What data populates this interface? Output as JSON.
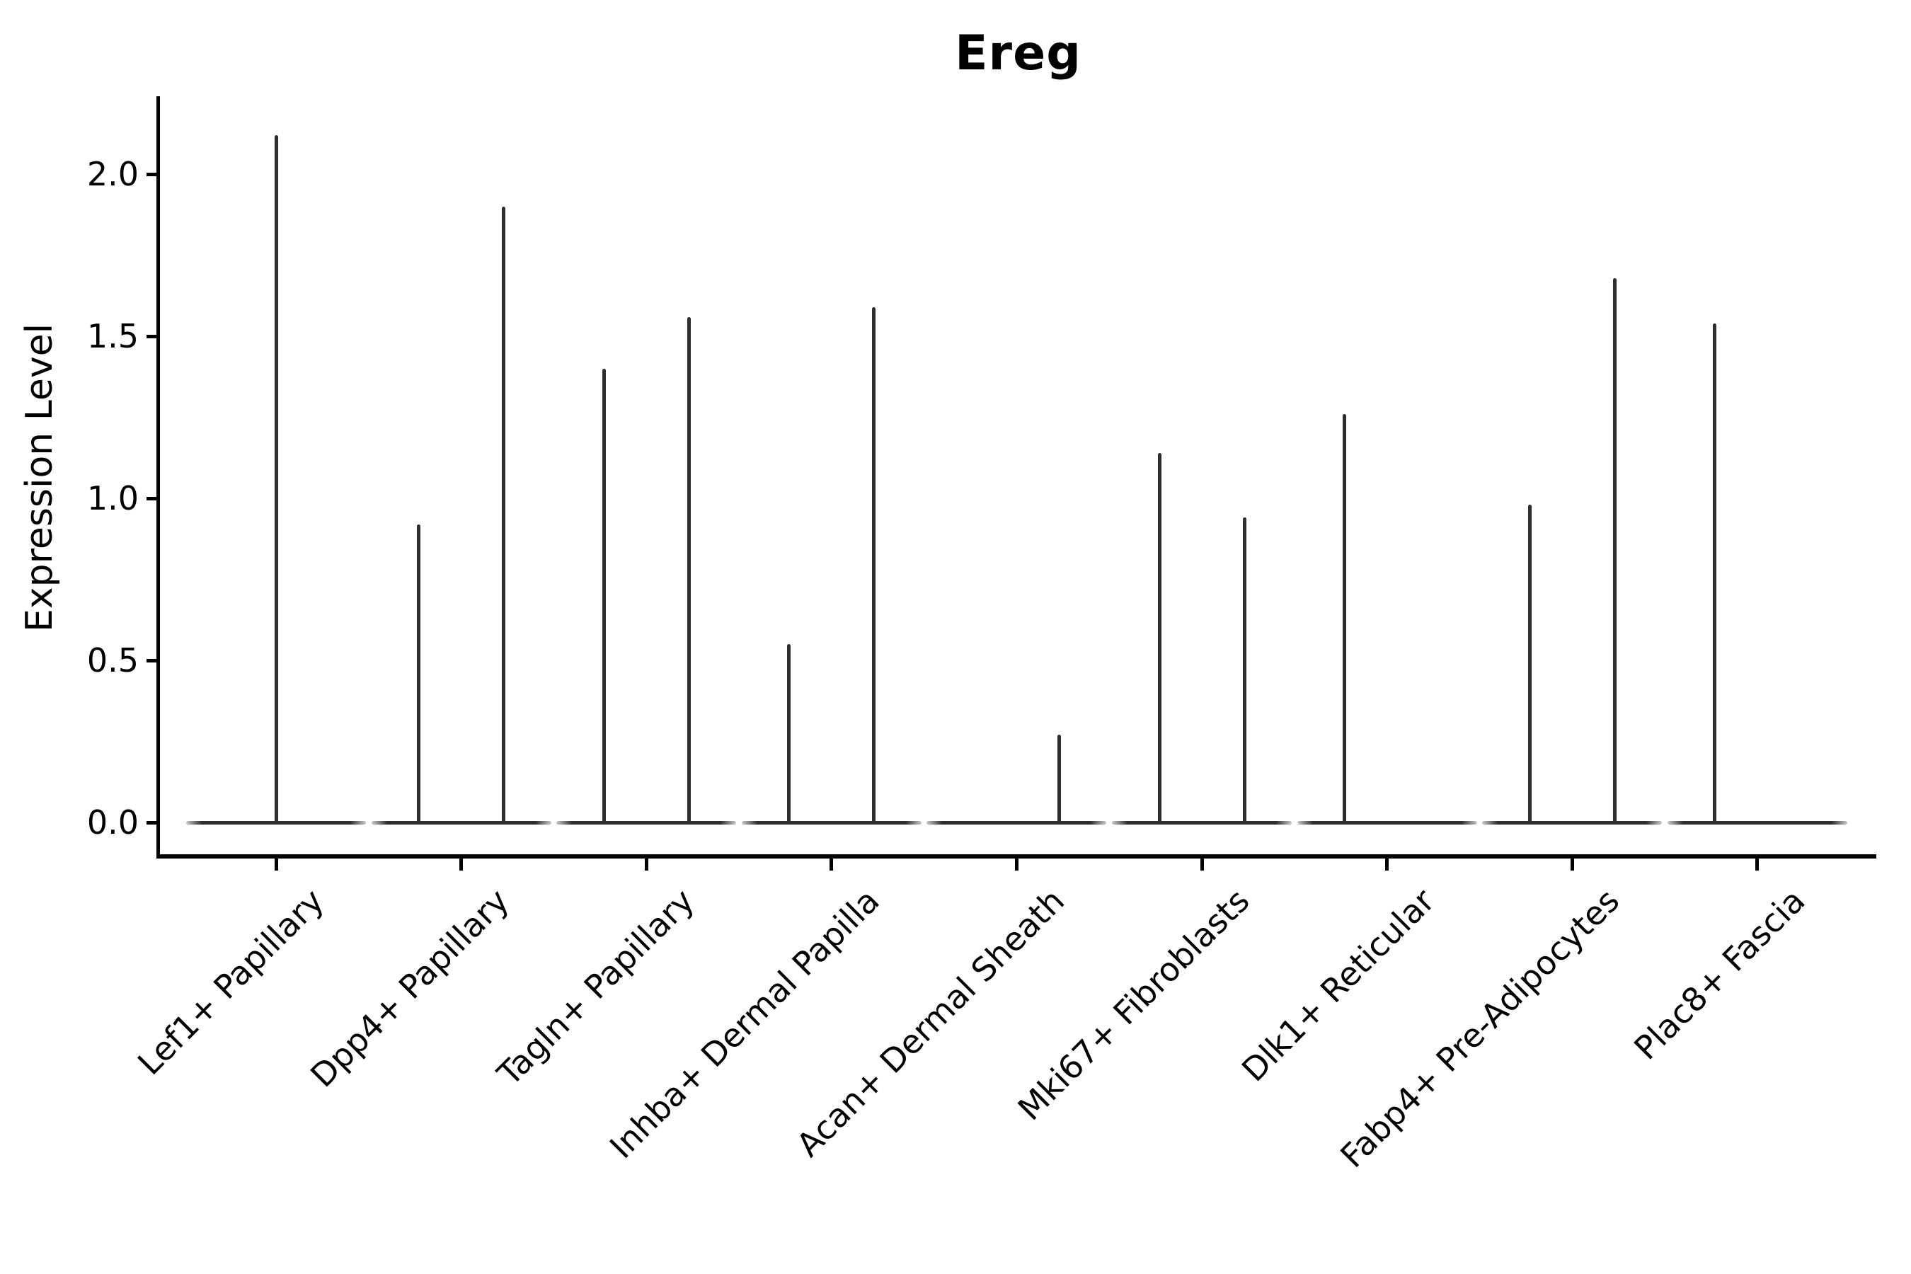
{
  "chart_data": {
    "type": "violin",
    "title": "Ereg",
    "ylabel": "Expression Level",
    "xlabel": "",
    "y_ticks": [
      0.0,
      0.5,
      1.0,
      1.5,
      2.0
    ],
    "y_tick_labels": [
      "0.0",
      "0.5",
      "1.0",
      "1.5",
      "2.0"
    ],
    "ylim": [
      -0.1,
      2.24
    ],
    "grid": false,
    "legend_position": "none",
    "categories": [
      "Lef1+ Papillary",
      "Dpp4+ Papillary",
      "Tagln+ Papillary",
      "Inhba+ Dermal Papilla",
      "Acan+ Dermal Sheath",
      "Mki67+ Fibroblasts",
      "Dlk1+ Reticular",
      "Fabp4+ Pre-Adipocytes",
      "Plac8+ Fascia"
    ],
    "violins": [
      {
        "category": "Lef1+ Papillary",
        "spikes": [
          {
            "pos": "center",
            "max": 2.12
          }
        ]
      },
      {
        "category": "Dpp4+ Papillary",
        "spikes": [
          {
            "pos": "left",
            "max": 0.92
          },
          {
            "pos": "right",
            "max": 1.9
          }
        ]
      },
      {
        "category": "Tagln+ Papillary",
        "spikes": [
          {
            "pos": "left",
            "max": 1.4
          },
          {
            "pos": "right",
            "max": 1.56
          }
        ]
      },
      {
        "category": "Inhba+ Dermal Papilla",
        "spikes": [
          {
            "pos": "left",
            "max": 0.55
          },
          {
            "pos": "right",
            "max": 1.59
          }
        ]
      },
      {
        "category": "Acan+ Dermal Sheath",
        "spikes": [
          {
            "pos": "right",
            "max": 0.27
          }
        ]
      },
      {
        "category": "Mki67+ Fibroblasts",
        "spikes": [
          {
            "pos": "left",
            "max": 1.14
          },
          {
            "pos": "right",
            "max": 0.94
          }
        ]
      },
      {
        "category": "Dlk1+ Reticular",
        "spikes": [
          {
            "pos": "left",
            "max": 1.26
          }
        ]
      },
      {
        "category": "Fabp4+ Pre-Adipocytes",
        "spikes": [
          {
            "pos": "left",
            "max": 0.98
          },
          {
            "pos": "right",
            "max": 1.68
          }
        ]
      },
      {
        "category": "Plac8+ Fascia",
        "spikes": [
          {
            "pos": "left",
            "max": 1.54
          }
        ]
      }
    ],
    "baseline_value": 0.0
  },
  "colors": {
    "violin_line": "#2e2e2e",
    "axis": "#000000",
    "background": "#ffffff"
  }
}
